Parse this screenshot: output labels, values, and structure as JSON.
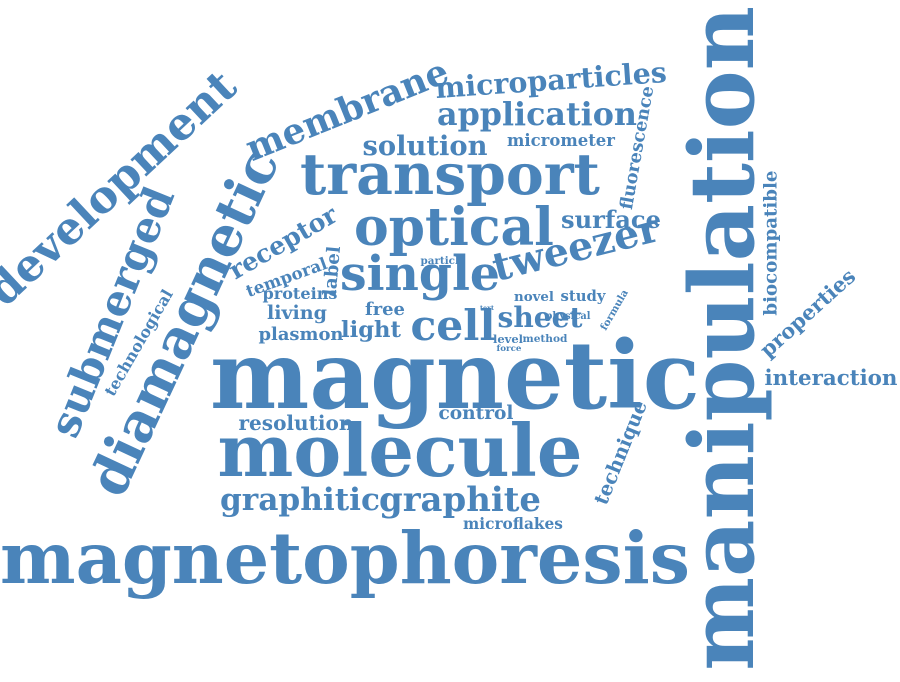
{
  "colors": {
    "word": "#4a84ba",
    "background": "#ffffff"
  },
  "words": [
    {
      "text": "magnetophoresis"
    },
    {
      "text": "manipulation"
    },
    {
      "text": "magnetic"
    },
    {
      "text": "molecule"
    },
    {
      "text": "diamagnetic"
    },
    {
      "text": "development"
    },
    {
      "text": "submerged"
    },
    {
      "text": "membrane"
    },
    {
      "text": "transport"
    },
    {
      "text": "optical"
    },
    {
      "text": "single"
    },
    {
      "text": "tweezer"
    },
    {
      "text": "cell"
    },
    {
      "text": "sheet"
    },
    {
      "text": "microparticles"
    },
    {
      "text": "application"
    },
    {
      "text": "solution"
    },
    {
      "text": "micrometer"
    },
    {
      "text": "fluorescence"
    },
    {
      "text": "surface"
    },
    {
      "text": "receptor"
    },
    {
      "text": "temporal"
    },
    {
      "text": "label"
    },
    {
      "text": "particle"
    },
    {
      "text": "proteins"
    },
    {
      "text": "living"
    },
    {
      "text": "free"
    },
    {
      "text": "text"
    },
    {
      "text": "novel"
    },
    {
      "text": "study"
    },
    {
      "text": "formula"
    },
    {
      "text": "physical"
    },
    {
      "text": "level"
    },
    {
      "text": "method"
    },
    {
      "text": "force"
    },
    {
      "text": "light"
    },
    {
      "text": "plasmon"
    },
    {
      "text": "technological"
    },
    {
      "text": "biocompatible"
    },
    {
      "text": "properties"
    },
    {
      "text": "interaction"
    },
    {
      "text": "resolution"
    },
    {
      "text": "control"
    },
    {
      "text": "technique"
    },
    {
      "text": "graphitic"
    },
    {
      "text": "graphite"
    },
    {
      "text": "microflakes"
    }
  ]
}
